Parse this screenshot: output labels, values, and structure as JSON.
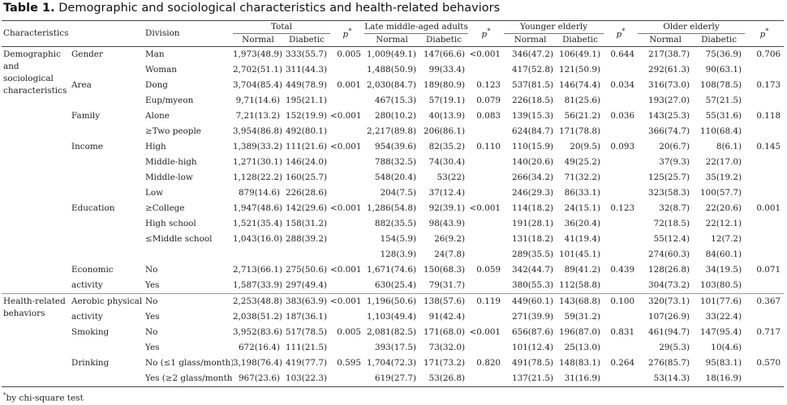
{
  "title": {
    "label": "Table 1.",
    "text": "Demographic and sociological characteristics and health-related behaviors"
  },
  "header": {
    "characteristics": "Characteristics",
    "division": "Division",
    "groups": [
      "Total",
      "Late middle-aged adults",
      "Younger elderly",
      "Older elderly"
    ],
    "normal": "Normal",
    "diabetic": "Diabetic",
    "p": "p"
  },
  "rows": [
    {
      "cat": "Demographic and sociological characteristics",
      "sub": "Gender",
      "div": "Man",
      "v": [
        "1,973(48.9)",
        "333(55.7)",
        "0.005",
        "1,009(49.1)",
        "147(66.6)",
        "<0.001",
        "346(47.2)",
        "106(49.1)",
        "0.644",
        "217(38.7)",
        "75(36.9)",
        "0.706"
      ]
    },
    {
      "cat": "",
      "sub": "",
      "div": "Woman",
      "v": [
        "2,702(51.1)",
        "311(44.3)",
        "",
        "1,488(50.9)",
        "99(33.4)",
        "",
        "417(52.8)",
        "121(50.9)",
        "",
        "292(61.3)",
        "90(63.1)",
        ""
      ]
    },
    {
      "cat": "",
      "sub": "Area",
      "div": "Dong",
      "v": [
        "3,704(85.4)",
        "449(78.9)",
        "0.001",
        "2,030(84.7)",
        "189(80.9)",
        "0.123",
        "537(81.5)",
        "146(74.4)",
        "0.034",
        "316(73.0)",
        "108(78.5)",
        "0.173"
      ]
    },
    {
      "cat": "",
      "sub": "",
      "div": "Eup/myeon",
      "v": [
        "9,71(14.6)",
        "195(21.1)",
        "",
        "467(15.3)",
        "57(19.1)",
        "0.079",
        "226(18.5)",
        "81(25.6)",
        "",
        "193(27.0)",
        "57(21.5)",
        ""
      ]
    },
    {
      "cat": "",
      "sub": "Family",
      "div": "Alone",
      "v": [
        "7,21(13.2)",
        "152(19.9)",
        "<0.001",
        "280(10.2)",
        "40(13.9)",
        "0.083",
        "139(15.3)",
        "56(21.2)",
        "0.036",
        "143(25.3)",
        "55(31.6)",
        "0.118"
      ]
    },
    {
      "cat": "",
      "sub": "",
      "div": "≥Two people",
      "v": [
        "3,954(86.8)",
        "492(80.1)",
        "",
        "2,217(89.8)",
        "206(86.1)",
        "",
        "624(84.7)",
        "171(78.8)",
        "",
        "366(74.7)",
        "110(68.4)",
        ""
      ]
    },
    {
      "cat": "",
      "sub": "Income",
      "div": "High",
      "v": [
        "1,389(33.2)",
        "111(21.6)",
        "<0.001",
        "954(39.6)",
        "82(35.2)",
        "0.110",
        "110(15.9)",
        "20(9.5)",
        "0.093",
        "20(6.7)",
        "8(6.1)",
        "0.145"
      ]
    },
    {
      "cat": "",
      "sub": "",
      "div": "Middle-high",
      "v": [
        "1,271(30.1)",
        "146(24.0)",
        "",
        "788(32.5)",
        "74(30.4)",
        "",
        "140(20.6)",
        "49(25.2)",
        "",
        "37(9.3)",
        "22(17.0)",
        ""
      ]
    },
    {
      "cat": "",
      "sub": "",
      "div": "Middle-low",
      "v": [
        "1,128(22.2)",
        "160(25.7)",
        "",
        "548(20.4)",
        "53(22)",
        "",
        "266(34.2)",
        "71(32.2)",
        "",
        "125(25.7)",
        "35(19.2)",
        ""
      ]
    },
    {
      "cat": "",
      "sub": "",
      "div": "Low",
      "v": [
        "879(14.6)",
        "226(28.6)",
        "",
        "204(7.5)",
        "37(12.4)",
        "",
        "246(29.3)",
        "86(33.1)",
        "",
        "323(58.3)",
        "100(57.7)",
        ""
      ]
    },
    {
      "cat": "",
      "sub": "Education",
      "div": "≥College",
      "v": [
        "1,947(48.6)",
        "142(29.6)",
        "<0.001",
        "1,286(54.8)",
        "92(39.1)",
        "<0.001",
        "114(18.2)",
        "24(15.1)",
        "0.123",
        "32(8.7)",
        "22(20.6)",
        "0.001"
      ]
    },
    {
      "cat": "",
      "sub": "",
      "div": "High school",
      "v": [
        "1,521(35.4)",
        "158(31.2)",
        "",
        "882(35.5)",
        "98(43.9)",
        "",
        "191(28.1)",
        "36(20.4)",
        "",
        "72(18.5)",
        "22(12.1)",
        ""
      ]
    },
    {
      "cat": "",
      "sub": "",
      "div": "≤Middle school",
      "v": [
        "1,043(16.0)",
        "288(39.2)",
        "",
        "154(5.9)",
        "26(9.2)",
        "",
        "131(18.2)",
        "41(19.4)",
        "",
        "55(12.4)",
        "12(7.2)",
        ""
      ]
    },
    {
      "cat": "",
      "sub": "",
      "div": "",
      "v": [
        "",
        "",
        "",
        "128(3.9)",
        "24(7.8)",
        "",
        "289(35.5)",
        "101(45.1)",
        "",
        "274(60.3)",
        "84(60.1)",
        ""
      ]
    },
    {
      "cat": "",
      "sub": "Economic",
      "div": "No",
      "v": [
        "2,713(66.1)",
        "275(50.6)",
        "<0.001",
        "1,671(74.6)",
        "150(68.3)",
        "0.059",
        "342(44.7)",
        "89(41.2)",
        "0.439",
        "128(26.8)",
        "34(19.5)",
        "0.071"
      ]
    },
    {
      "cat": "",
      "sub": "activity",
      "div": "Yes",
      "v": [
        "1,587(33.9)",
        "297(49.4)",
        "",
        "630(25.4)",
        "79(31.7)",
        "",
        "380(55.3)",
        "112(58.8)",
        "",
        "304(73.2)",
        "103(80.5)",
        ""
      ]
    },
    {
      "cat": "Health-related behaviors",
      "sub": "Aerobic physical",
      "div": "No",
      "v": [
        "2,253(48.8)",
        "383(63.9)",
        "<0.001",
        "1,196(50.6)",
        "138(57.6)",
        "0.119",
        "449(60.1)",
        "143(68.8)",
        "0.100",
        "320(73.1)",
        "101(77.6)",
        "0.367"
      ]
    },
    {
      "cat": "",
      "sub": "activity",
      "div": "Yes",
      "v": [
        "2,038(51.2)",
        "187(36.1)",
        "",
        "1,103(49.4)",
        "91(42.4)",
        "",
        "271(39.9)",
        "59(31.2)",
        "",
        "107(26.9)",
        "33(22.4)",
        ""
      ]
    },
    {
      "cat": "",
      "sub": "Smoking",
      "div": "No",
      "v": [
        "3,952(83.6)",
        "517(78.5)",
        "0.005",
        "2,081(82.5)",
        "171(68.0)",
        "<0.001",
        "656(87.6)",
        "196(87.0)",
        "0.831",
        "461(94.7)",
        "147(95.4)",
        "0.717"
      ]
    },
    {
      "cat": "",
      "sub": "",
      "div": "Yes",
      "v": [
        "672(16.4)",
        "111(21.5)",
        "",
        "393(17.5)",
        "73(32.0)",
        "",
        "101(12.4)",
        "25(13.0)",
        "",
        "29(5.3)",
        "10(4.6)",
        ""
      ]
    },
    {
      "cat": "",
      "sub": "Drinking",
      "div": "No (≤1 glass/month)",
      "v": [
        "3,198(76.4)",
        "419(77.7)",
        "0.595",
        "1,704(72.3)",
        "171(73.2)",
        "0.820",
        "491(78.5)",
        "148(83.1)",
        "0.264",
        "276(85.7)",
        "95(83.1)",
        "0.570"
      ]
    },
    {
      "cat": "",
      "sub": "",
      "div": "Yes (≥2 glass/month)",
      "v": [
        "967(23.6)",
        "103(22.3)",
        "",
        "619(27.7)",
        "53(26.8)",
        "",
        "137(21.5)",
        "31(16.9)",
        "",
        "53(14.3)",
        "18(16.9)",
        ""
      ]
    }
  ],
  "footnote": {
    "mark": "*",
    "text": "by chi-square test"
  }
}
